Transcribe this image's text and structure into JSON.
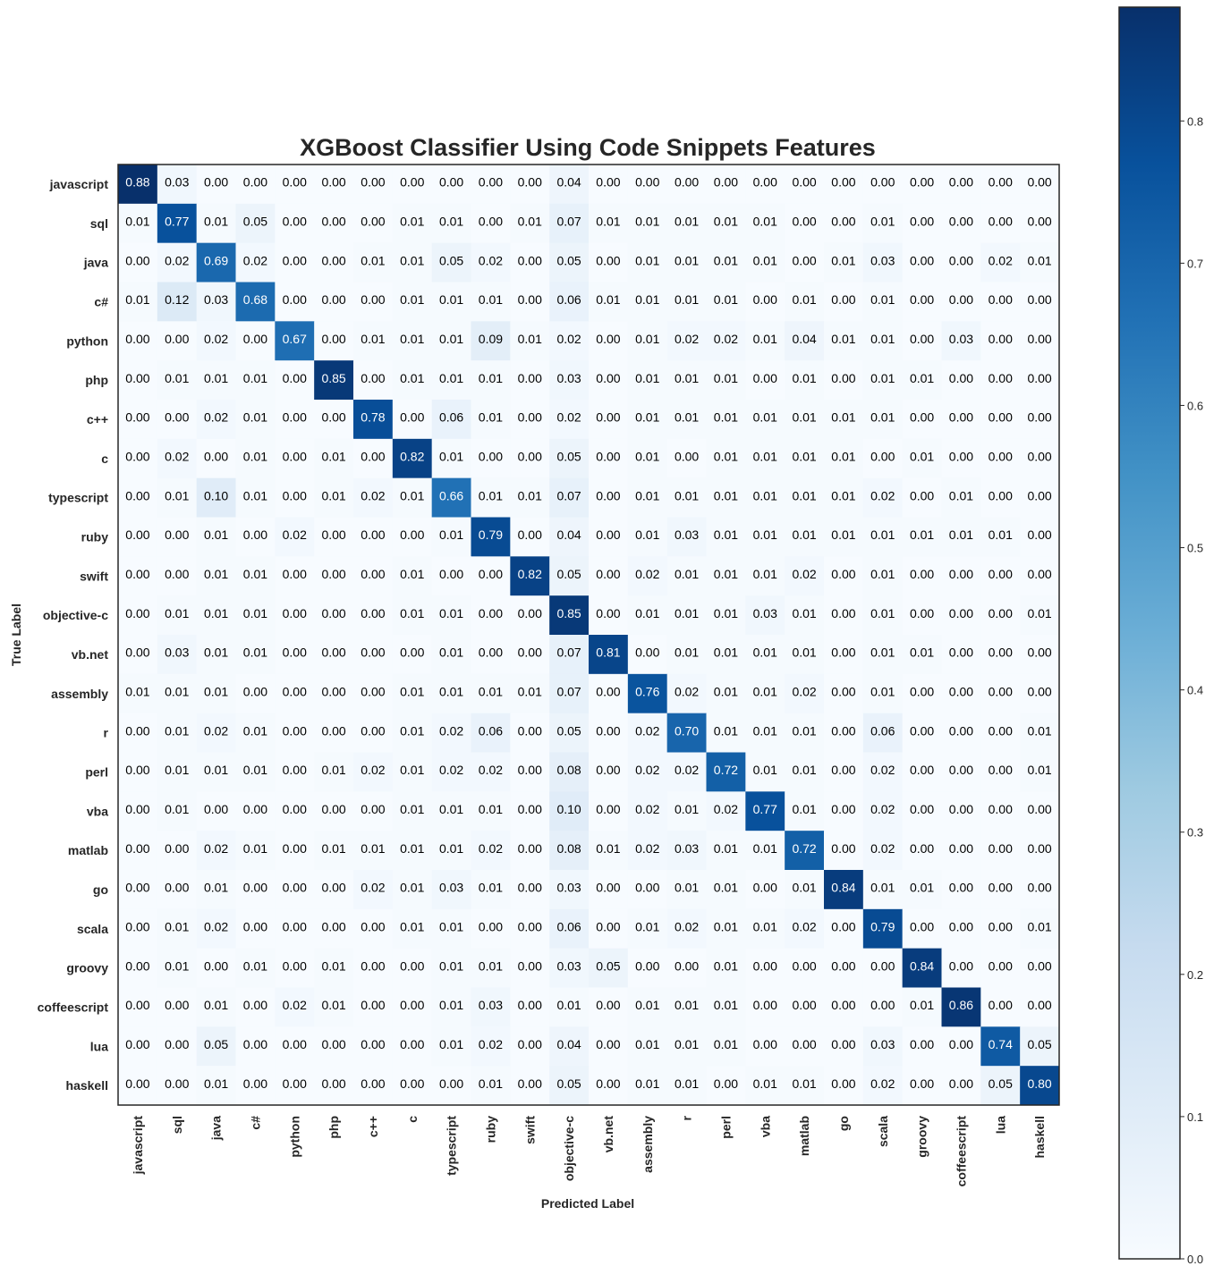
{
  "chart_data": {
    "type": "heatmap",
    "title": "XGBoost Classifier Using Code Snippets Features",
    "xlabel": "Predicted Label",
    "ylabel": "True Label",
    "categories": [
      "javascript",
      "sql",
      "java",
      "c#",
      "python",
      "php",
      "c++",
      "c",
      "typescript",
      "ruby",
      "swift",
      "objective-c",
      "vb.net",
      "assembly",
      "r",
      "perl",
      "vba",
      "matlab",
      "go",
      "scala",
      "groovy",
      "coffeescript",
      "lua",
      "haskell"
    ],
    "colormap": "Blues",
    "vmin": 0.0,
    "vmax": 0.88,
    "colorbar_ticks": [
      "0.0",
      "0.1",
      "0.2",
      "0.3",
      "0.4",
      "0.5",
      "0.6",
      "0.7",
      "0.8"
    ],
    "grid": false,
    "values": [
      [
        "0.88",
        "0.03",
        "0.00",
        "0.00",
        "0.00",
        "0.00",
        "0.00",
        "0.00",
        "0.00",
        "0.00",
        "0.00",
        "0.04",
        "0.00",
        "0.00",
        "0.00",
        "0.00",
        "0.00",
        "0.00",
        "0.00",
        "0.00",
        "0.00",
        "0.00",
        "0.00",
        "0.00"
      ],
      [
        "0.01",
        "0.77",
        "0.01",
        "0.05",
        "0.00",
        "0.00",
        "0.00",
        "0.01",
        "0.01",
        "0.00",
        "0.01",
        "0.07",
        "0.01",
        "0.01",
        "0.01",
        "0.01",
        "0.01",
        "0.00",
        "0.00",
        "0.01",
        "0.00",
        "0.00",
        "0.00",
        "0.00"
      ],
      [
        "0.00",
        "0.02",
        "0.69",
        "0.02",
        "0.00",
        "0.00",
        "0.01",
        "0.01",
        "0.05",
        "0.02",
        "0.00",
        "0.05",
        "0.00",
        "0.01",
        "0.01",
        "0.01",
        "0.01",
        "0.00",
        "0.01",
        "0.03",
        "0.00",
        "0.00",
        "0.02",
        "0.01"
      ],
      [
        "0.01",
        "0.12",
        "0.03",
        "0.68",
        "0.00",
        "0.00",
        "0.00",
        "0.01",
        "0.01",
        "0.01",
        "0.00",
        "0.06",
        "0.01",
        "0.01",
        "0.01",
        "0.01",
        "0.00",
        "0.01",
        "0.00",
        "0.01",
        "0.00",
        "0.00",
        "0.00",
        "0.00"
      ],
      [
        "0.00",
        "0.00",
        "0.02",
        "0.00",
        "0.67",
        "0.00",
        "0.01",
        "0.01",
        "0.01",
        "0.09",
        "0.01",
        "0.02",
        "0.00",
        "0.01",
        "0.02",
        "0.02",
        "0.01",
        "0.04",
        "0.01",
        "0.01",
        "0.00",
        "0.03",
        "0.00",
        "0.00"
      ],
      [
        "0.00",
        "0.01",
        "0.01",
        "0.01",
        "0.00",
        "0.85",
        "0.00",
        "0.01",
        "0.01",
        "0.01",
        "0.00",
        "0.03",
        "0.00",
        "0.01",
        "0.01",
        "0.01",
        "0.00",
        "0.01",
        "0.00",
        "0.01",
        "0.01",
        "0.00",
        "0.00",
        "0.00"
      ],
      [
        "0.00",
        "0.00",
        "0.02",
        "0.01",
        "0.00",
        "0.00",
        "0.78",
        "0.00",
        "0.06",
        "0.01",
        "0.00",
        "0.02",
        "0.00",
        "0.01",
        "0.01",
        "0.01",
        "0.01",
        "0.01",
        "0.01",
        "0.01",
        "0.00",
        "0.00",
        "0.00",
        "0.00"
      ],
      [
        "0.00",
        "0.02",
        "0.00",
        "0.01",
        "0.00",
        "0.01",
        "0.00",
        "0.82",
        "0.01",
        "0.00",
        "0.00",
        "0.05",
        "0.00",
        "0.01",
        "0.00",
        "0.01",
        "0.01",
        "0.01",
        "0.01",
        "0.00",
        "0.01",
        "0.00",
        "0.00",
        "0.00"
      ],
      [
        "0.00",
        "0.01",
        "0.10",
        "0.01",
        "0.00",
        "0.01",
        "0.02",
        "0.01",
        "0.66",
        "0.01",
        "0.01",
        "0.07",
        "0.00",
        "0.01",
        "0.01",
        "0.01",
        "0.01",
        "0.01",
        "0.01",
        "0.02",
        "0.00",
        "0.01",
        "0.00",
        "0.00"
      ],
      [
        "0.00",
        "0.00",
        "0.01",
        "0.00",
        "0.02",
        "0.00",
        "0.00",
        "0.00",
        "0.01",
        "0.79",
        "0.00",
        "0.04",
        "0.00",
        "0.01",
        "0.03",
        "0.01",
        "0.01",
        "0.01",
        "0.01",
        "0.01",
        "0.01",
        "0.01",
        "0.01",
        "0.00"
      ],
      [
        "0.00",
        "0.00",
        "0.01",
        "0.01",
        "0.00",
        "0.00",
        "0.00",
        "0.01",
        "0.00",
        "0.00",
        "0.82",
        "0.05",
        "0.00",
        "0.02",
        "0.01",
        "0.01",
        "0.01",
        "0.02",
        "0.00",
        "0.01",
        "0.00",
        "0.00",
        "0.00",
        "0.00"
      ],
      [
        "0.00",
        "0.01",
        "0.01",
        "0.01",
        "0.00",
        "0.00",
        "0.00",
        "0.01",
        "0.01",
        "0.00",
        "0.00",
        "0.85",
        "0.00",
        "0.01",
        "0.01",
        "0.01",
        "0.03",
        "0.01",
        "0.00",
        "0.01",
        "0.00",
        "0.00",
        "0.00",
        "0.01"
      ],
      [
        "0.00",
        "0.03",
        "0.01",
        "0.01",
        "0.00",
        "0.00",
        "0.00",
        "0.00",
        "0.01",
        "0.00",
        "0.00",
        "0.07",
        "0.81",
        "0.00",
        "0.01",
        "0.01",
        "0.01",
        "0.01",
        "0.00",
        "0.01",
        "0.01",
        "0.00",
        "0.00",
        "0.00"
      ],
      [
        "0.01",
        "0.01",
        "0.01",
        "0.00",
        "0.00",
        "0.00",
        "0.00",
        "0.01",
        "0.01",
        "0.01",
        "0.01",
        "0.07",
        "0.00",
        "0.76",
        "0.02",
        "0.01",
        "0.01",
        "0.02",
        "0.00",
        "0.01",
        "0.00",
        "0.00",
        "0.00",
        "0.00"
      ],
      [
        "0.00",
        "0.01",
        "0.02",
        "0.01",
        "0.00",
        "0.00",
        "0.00",
        "0.01",
        "0.02",
        "0.06",
        "0.00",
        "0.05",
        "0.00",
        "0.02",
        "0.70",
        "0.01",
        "0.01",
        "0.01",
        "0.00",
        "0.06",
        "0.00",
        "0.00",
        "0.00",
        "0.01"
      ],
      [
        "0.00",
        "0.01",
        "0.01",
        "0.01",
        "0.00",
        "0.01",
        "0.02",
        "0.01",
        "0.02",
        "0.02",
        "0.00",
        "0.08",
        "0.00",
        "0.02",
        "0.02",
        "0.72",
        "0.01",
        "0.01",
        "0.00",
        "0.02",
        "0.00",
        "0.00",
        "0.00",
        "0.01"
      ],
      [
        "0.00",
        "0.01",
        "0.00",
        "0.00",
        "0.00",
        "0.00",
        "0.00",
        "0.01",
        "0.01",
        "0.01",
        "0.00",
        "0.10",
        "0.00",
        "0.02",
        "0.01",
        "0.02",
        "0.77",
        "0.01",
        "0.00",
        "0.02",
        "0.00",
        "0.00",
        "0.00",
        "0.00"
      ],
      [
        "0.00",
        "0.00",
        "0.02",
        "0.01",
        "0.00",
        "0.01",
        "0.01",
        "0.01",
        "0.01",
        "0.02",
        "0.00",
        "0.08",
        "0.01",
        "0.02",
        "0.03",
        "0.01",
        "0.01",
        "0.72",
        "0.00",
        "0.02",
        "0.00",
        "0.00",
        "0.00",
        "0.00"
      ],
      [
        "0.00",
        "0.00",
        "0.01",
        "0.00",
        "0.00",
        "0.00",
        "0.02",
        "0.01",
        "0.03",
        "0.01",
        "0.00",
        "0.03",
        "0.00",
        "0.00",
        "0.01",
        "0.01",
        "0.00",
        "0.01",
        "0.84",
        "0.01",
        "0.01",
        "0.00",
        "0.00",
        "0.00"
      ],
      [
        "0.00",
        "0.01",
        "0.02",
        "0.00",
        "0.00",
        "0.00",
        "0.00",
        "0.01",
        "0.01",
        "0.00",
        "0.00",
        "0.06",
        "0.00",
        "0.01",
        "0.02",
        "0.01",
        "0.01",
        "0.02",
        "0.00",
        "0.79",
        "0.00",
        "0.00",
        "0.00",
        "0.01"
      ],
      [
        "0.00",
        "0.01",
        "0.00",
        "0.01",
        "0.00",
        "0.01",
        "0.00",
        "0.00",
        "0.01",
        "0.01",
        "0.00",
        "0.03",
        "0.05",
        "0.00",
        "0.00",
        "0.01",
        "0.00",
        "0.00",
        "0.00",
        "0.00",
        "0.84",
        "0.00",
        "0.00",
        "0.00"
      ],
      [
        "0.00",
        "0.00",
        "0.01",
        "0.00",
        "0.02",
        "0.01",
        "0.00",
        "0.00",
        "0.01",
        "0.03",
        "0.00",
        "0.01",
        "0.00",
        "0.01",
        "0.01",
        "0.01",
        "0.00",
        "0.00",
        "0.00",
        "0.00",
        "0.01",
        "0.86",
        "0.00",
        "0.00"
      ],
      [
        "0.00",
        "0.00",
        "0.05",
        "0.00",
        "0.00",
        "0.00",
        "0.00",
        "0.00",
        "0.01",
        "0.02",
        "0.00",
        "0.04",
        "0.00",
        "0.01",
        "0.01",
        "0.01",
        "0.00",
        "0.00",
        "0.00",
        "0.03",
        "0.00",
        "0.00",
        "0.74",
        "0.05"
      ],
      [
        "0.00",
        "0.00",
        "0.01",
        "0.00",
        "0.00",
        "0.00",
        "0.00",
        "0.00",
        "0.00",
        "0.01",
        "0.00",
        "0.05",
        "0.00",
        "0.01",
        "0.01",
        "0.00",
        "0.01",
        "0.01",
        "0.00",
        "0.02",
        "0.00",
        "0.00",
        "0.05",
        "0.80"
      ]
    ]
  }
}
